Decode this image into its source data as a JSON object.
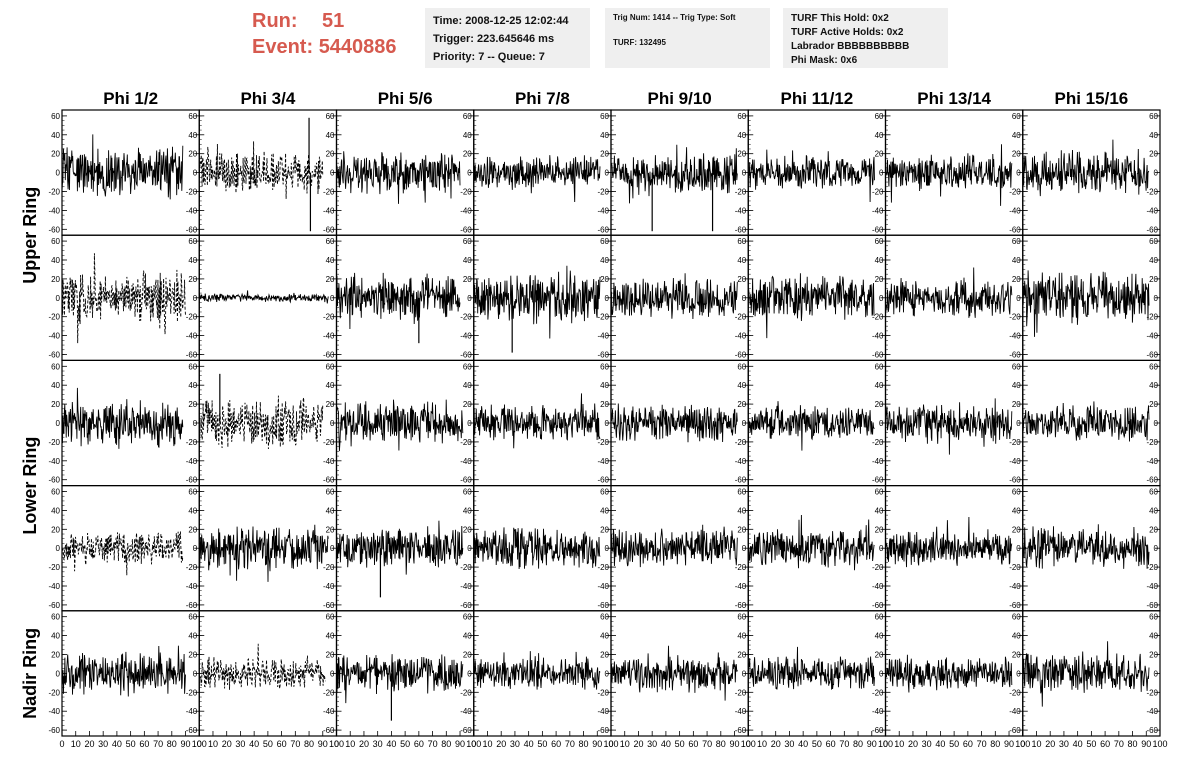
{
  "header": {
    "run_label": "Run:",
    "run_value": "51",
    "event_label": "Event:",
    "event_value": "5440886",
    "time": "Time: 2008-12-25 12:02:44",
    "trigger": "Trigger: 223.645646 ms",
    "priority": "Priority: 7 -- Queue: 7",
    "trig_num": "Trig Num: 1414 -- Trig Type: Soft",
    "turf": "TURF: 132495",
    "turf_this_hold": "TURF This Hold: 0x2",
    "turf_active_holds": "TURF Active Holds: 0x2",
    "labrador": "Labrador BBBBBBBBBB",
    "phi_mask": "Phi Mask: 0x6"
  },
  "colors": {
    "accent": "#d65a4f",
    "info_bg": "#efefef",
    "trace": "#000000"
  },
  "chart_data": {
    "type": "line",
    "columns": [
      "Phi 1/2",
      "Phi 3/4",
      "Phi 5/6",
      "Phi 7/8",
      "Phi 9/10",
      "Phi 11/12",
      "Phi 13/14",
      "Phi 15/16"
    ],
    "ring_labels": [
      {
        "text": "Upper Ring",
        "rows": [
          0,
          1
        ]
      },
      {
        "text": "Lower Ring",
        "rows": [
          2,
          3
        ]
      },
      {
        "text": "Nadir Ring",
        "rows": [
          4,
          4
        ]
      }
    ],
    "ylim": [
      -62,
      62
    ],
    "yticks": [
      "60",
      "40",
      "20",
      "0",
      "-20",
      "-40",
      "-60"
    ],
    "xlim": [
      0,
      100
    ],
    "xticks": [
      "0",
      "10",
      "20",
      "30",
      "40",
      "50",
      "60",
      "70",
      "80",
      "90",
      "100"
    ],
    "panels": [
      [
        {
          "amp": 18,
          "style": "solid",
          "seed": 11,
          "xmax": 88
        },
        {
          "amp": 16,
          "style": "dashed",
          "seed": 12,
          "xmax": 90
        },
        {
          "amp": 16,
          "style": "solid",
          "seed": 13,
          "xmax": 90
        },
        {
          "amp": 12,
          "style": "solid",
          "seed": 14,
          "xmax": 92
        },
        {
          "amp": 14,
          "style": "solid",
          "seed": 15,
          "xmax": 92
        },
        {
          "amp": 12,
          "style": "solid",
          "seed": 16,
          "xmax": 92
        },
        {
          "amp": 14,
          "style": "solid",
          "seed": 17,
          "xmax": 92
        },
        {
          "amp": 16,
          "style": "solid",
          "seed": 18,
          "xmax": 92
        }
      ],
      [
        {
          "amp": 20,
          "style": "dashed",
          "seed": 21,
          "xmax": 90
        },
        {
          "amp": 3,
          "style": "solid",
          "seed": 22,
          "xmax": 94
        },
        {
          "amp": 17,
          "style": "solid",
          "seed": 23,
          "xmax": 90
        },
        {
          "amp": 18,
          "style": "solid",
          "seed": 24,
          "xmax": 92
        },
        {
          "amp": 15,
          "style": "solid",
          "seed": 25,
          "xmax": 92
        },
        {
          "amp": 16,
          "style": "solid",
          "seed": 26,
          "xmax": 92
        },
        {
          "amp": 14,
          "style": "solid",
          "seed": 27,
          "xmax": 92
        },
        {
          "amp": 20,
          "style": "solid",
          "seed": 28,
          "xmax": 92
        }
      ],
      [
        {
          "amp": 18,
          "style": "solid",
          "seed": 31,
          "xmax": 88
        },
        {
          "amp": 18,
          "style": "dashed",
          "seed": 32,
          "xmax": 90
        },
        {
          "amp": 16,
          "style": "solid",
          "seed": 33,
          "xmax": 92
        },
        {
          "amp": 13,
          "style": "solid",
          "seed": 34,
          "xmax": 92
        },
        {
          "amp": 14,
          "style": "solid",
          "seed": 35,
          "xmax": 92
        },
        {
          "amp": 12,
          "style": "solid",
          "seed": 36,
          "xmax": 92
        },
        {
          "amp": 14,
          "style": "solid",
          "seed": 37,
          "xmax": 92
        },
        {
          "amp": 13,
          "style": "solid",
          "seed": 38,
          "xmax": 92
        }
      ],
      [
        {
          "amp": 12,
          "style": "dashed",
          "seed": 41,
          "xmax": 88
        },
        {
          "amp": 16,
          "style": "solid",
          "seed": 42,
          "xmax": 94
        },
        {
          "amp": 15,
          "style": "solid",
          "seed": 43,
          "xmax": 92
        },
        {
          "amp": 15,
          "style": "solid",
          "seed": 44,
          "xmax": 92
        },
        {
          "amp": 14,
          "style": "solid",
          "seed": 45,
          "xmax": 92
        },
        {
          "amp": 14,
          "style": "solid",
          "seed": 46,
          "xmax": 92
        },
        {
          "amp": 13,
          "style": "solid",
          "seed": 47,
          "xmax": 92
        },
        {
          "amp": 16,
          "style": "solid",
          "seed": 48,
          "xmax": 92
        }
      ],
      [
        {
          "amp": 16,
          "style": "solid",
          "seed": 51,
          "xmax": 90
        },
        {
          "amp": 12,
          "style": "dashed",
          "seed": 52,
          "xmax": 92
        },
        {
          "amp": 14,
          "style": "solid",
          "seed": 53,
          "xmax": 92
        },
        {
          "amp": 12,
          "style": "solid",
          "seed": 54,
          "xmax": 92
        },
        {
          "amp": 13,
          "style": "solid",
          "seed": 55,
          "xmax": 92
        },
        {
          "amp": 12,
          "style": "solid",
          "seed": 56,
          "xmax": 92
        },
        {
          "amp": 13,
          "style": "solid",
          "seed": 57,
          "xmax": 92
        },
        {
          "amp": 14,
          "style": "solid",
          "seed": 58,
          "xmax": 92
        }
      ]
    ],
    "spikes": [
      {
        "row": 0,
        "col": 1,
        "x": 80,
        "y": 58
      },
      {
        "row": 0,
        "col": 1,
        "x": 81,
        "y": -62
      },
      {
        "row": 0,
        "col": 4,
        "x": 30,
        "y": -62
      },
      {
        "row": 0,
        "col": 4,
        "x": 74,
        "y": -62
      },
      {
        "row": 1,
        "col": 3,
        "x": 28,
        "y": -58
      },
      {
        "row": 1,
        "col": 2,
        "x": 60,
        "y": -48
      },
      {
        "row": 2,
        "col": 1,
        "x": 15,
        "y": 52
      },
      {
        "row": 3,
        "col": 2,
        "x": 32,
        "y": -52
      },
      {
        "row": 4,
        "col": 2,
        "x": 40,
        "y": -50
      }
    ]
  }
}
